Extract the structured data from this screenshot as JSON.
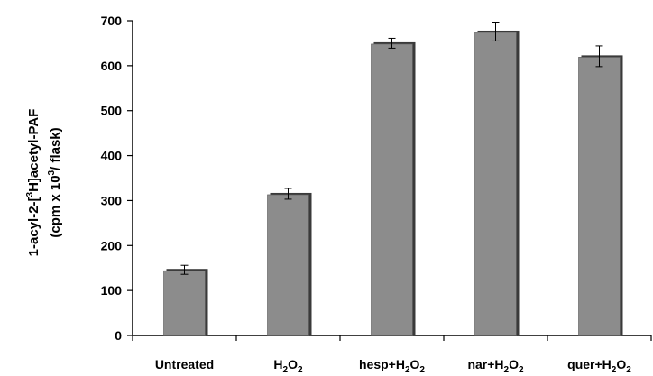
{
  "chart_data": {
    "type": "bar",
    "categories": [
      "Untreated",
      "H2O2",
      "hesp+H2O2",
      "nar+H2O2",
      "quer+H2O2"
    ],
    "category_parts": [
      [
        {
          "t": "Untreated",
          "s": "n"
        }
      ],
      [
        {
          "t": "H",
          "s": "n"
        },
        {
          "t": "2",
          "s": "b"
        },
        {
          "t": "O",
          "s": "n"
        },
        {
          "t": "2",
          "s": "b"
        }
      ],
      [
        {
          "t": "hesp+H",
          "s": "n"
        },
        {
          "t": "2",
          "s": "b"
        },
        {
          "t": "O",
          "s": "n"
        },
        {
          "t": "2",
          "s": "b"
        }
      ],
      [
        {
          "t": "nar+H",
          "s": "n"
        },
        {
          "t": "2",
          "s": "b"
        },
        {
          "t": "O",
          "s": "n"
        },
        {
          "t": "2",
          "s": "b"
        }
      ],
      [
        {
          "t": "quer+H",
          "s": "n"
        },
        {
          "t": "2",
          "s": "b"
        },
        {
          "t": "O",
          "s": "n"
        },
        {
          "t": "2",
          "s": "b"
        }
      ]
    ],
    "values": [
      146,
      315,
      650,
      676,
      621
    ],
    "errors": [
      10,
      12,
      11,
      21,
      23
    ],
    "ylim": [
      0,
      700
    ],
    "yticks": [
      0,
      100,
      200,
      300,
      400,
      500,
      600,
      700
    ],
    "ylabel_line1": [
      {
        "t": "1-acyl-2-[",
        "s": "n"
      },
      {
        "t": "3",
        "s": "p"
      },
      {
        "t": "H]acetyl-PAF",
        "s": "n"
      }
    ],
    "ylabel_line2": [
      {
        "t": "(cpm x 10",
        "s": "n"
      },
      {
        "t": "3",
        "s": "p"
      },
      {
        "t": "/ flask)",
        "s": "n"
      }
    ],
    "grid": false,
    "bar_color": "#8c8c8c",
    "bar_shadow_color": "#3a3a3a"
  }
}
